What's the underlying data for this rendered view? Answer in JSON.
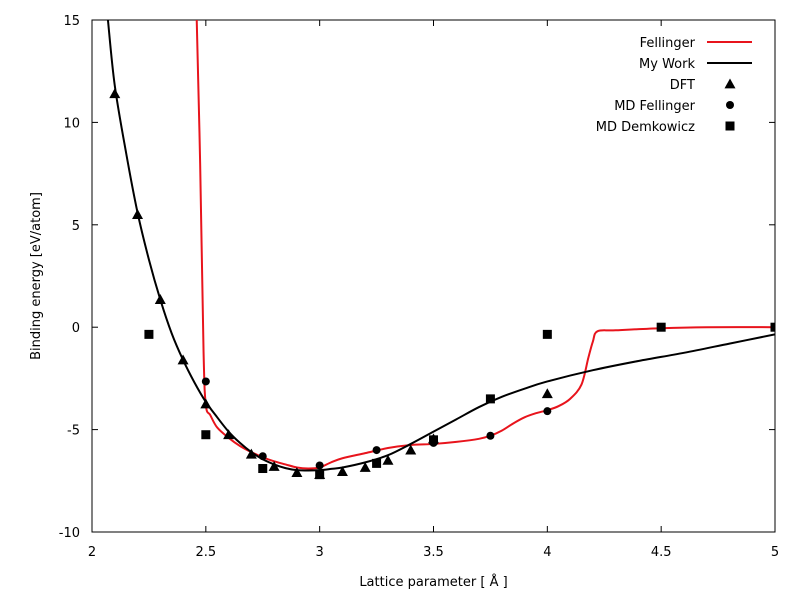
{
  "chart_data": {
    "type": "line",
    "title": "",
    "xlabel": "Lattice parameter [ Å ]",
    "ylabel": "Binding energy [eV/atom]",
    "xlim": [
      2,
      5
    ],
    "ylim": [
      -10,
      15
    ],
    "xticks": [
      2,
      2.5,
      3,
      3.5,
      4,
      4.5,
      5
    ],
    "xtick_labels": [
      "2",
      "2.5",
      "3",
      "3.5",
      "4",
      "4.5",
      "5"
    ],
    "yticks": [
      -10,
      -5,
      0,
      5,
      10,
      15
    ],
    "ytick_labels": [
      "-10",
      "-5",
      "0",
      "5",
      "10",
      "15"
    ],
    "legend_position": "top-right",
    "grid": false,
    "series": [
      {
        "name": "Fellinger",
        "kind": "line",
        "color": "#e8141c",
        "x": [
          2.46,
          2.475,
          2.49,
          2.5,
          2.52,
          2.55,
          2.6,
          2.65,
          2.7,
          2.75,
          2.8,
          2.85,
          2.9,
          2.95,
          3.0,
          3.05,
          3.1,
          3.2,
          3.3,
          3.4,
          3.5,
          3.6,
          3.7,
          3.75,
          3.8,
          3.85,
          3.9,
          3.95,
          4.0,
          4.05,
          4.1,
          4.15,
          4.18,
          4.2,
          4.22,
          4.3,
          4.5,
          4.7,
          5.0
        ],
        "y": [
          15,
          8.0,
          -1.2,
          -3.8,
          -4.3,
          -4.9,
          -5.4,
          -5.8,
          -6.1,
          -6.35,
          -6.55,
          -6.7,
          -6.85,
          -6.9,
          -6.85,
          -6.6,
          -6.4,
          -6.15,
          -5.9,
          -5.75,
          -5.7,
          -5.6,
          -5.45,
          -5.3,
          -5.05,
          -4.7,
          -4.4,
          -4.2,
          -4.05,
          -3.85,
          -3.5,
          -2.8,
          -1.5,
          -0.7,
          -0.2,
          -0.15,
          -0.05,
          0.0,
          0.0
        ]
      },
      {
        "name": "My Work",
        "kind": "line",
        "color": "#000000",
        "x": [
          2.07,
          2.1,
          2.15,
          2.2,
          2.25,
          2.3,
          2.35,
          2.4,
          2.45,
          2.5,
          2.55,
          2.6,
          2.65,
          2.7,
          2.75,
          2.8,
          2.85,
          2.9,
          2.95,
          3.0,
          3.05,
          3.1,
          3.2,
          3.3,
          3.4,
          3.5,
          3.6,
          3.7,
          3.8,
          3.9,
          4.0,
          4.2,
          4.4,
          4.6,
          4.8,
          5.0
        ],
        "y": [
          15,
          11.8,
          8.5,
          5.6,
          3.3,
          1.35,
          -0.3,
          -1.6,
          -2.7,
          -3.65,
          -4.4,
          -5.1,
          -5.65,
          -6.1,
          -6.45,
          -6.7,
          -6.88,
          -6.98,
          -7.0,
          -6.98,
          -6.92,
          -6.85,
          -6.6,
          -6.25,
          -5.7,
          -5.1,
          -4.5,
          -3.9,
          -3.4,
          -3.0,
          -2.65,
          -2.1,
          -1.65,
          -1.25,
          -0.8,
          -0.35
        ]
      },
      {
        "name": "DFT",
        "kind": "scatter",
        "marker": "triangle",
        "color": "#000000",
        "x": [
          2.1,
          2.2,
          2.3,
          2.4,
          2.5,
          2.6,
          2.7,
          2.8,
          2.9,
          3.0,
          3.1,
          3.2,
          3.3,
          3.4,
          3.5,
          4.0
        ],
        "y": [
          11.4,
          5.5,
          1.35,
          -1.6,
          -3.75,
          -5.25,
          -6.2,
          -6.8,
          -7.1,
          -7.2,
          -7.05,
          -6.85,
          -6.5,
          -6.0,
          -5.45,
          -3.25
        ]
      },
      {
        "name": "MD Fellinger",
        "kind": "scatter",
        "marker": "circle",
        "color": "#000000",
        "x": [
          2.5,
          2.75,
          3.0,
          3.25,
          3.5,
          3.75,
          4.0,
          4.5,
          5.0
        ],
        "y": [
          -2.65,
          -6.3,
          -6.75,
          -6.0,
          -5.65,
          -5.3,
          -4.1,
          0.0,
          0.0
        ]
      },
      {
        "name": "MD Demkowicz",
        "kind": "scatter",
        "marker": "square",
        "color": "#000000",
        "x": [
          2.25,
          2.5,
          2.75,
          3.0,
          3.25,
          3.5,
          3.75,
          4.0,
          4.5,
          5.0
        ],
        "y": [
          -0.35,
          -5.25,
          -6.9,
          -7.2,
          -6.65,
          -5.5,
          -3.5,
          -0.35,
          0.0,
          0.0
        ]
      }
    ]
  }
}
